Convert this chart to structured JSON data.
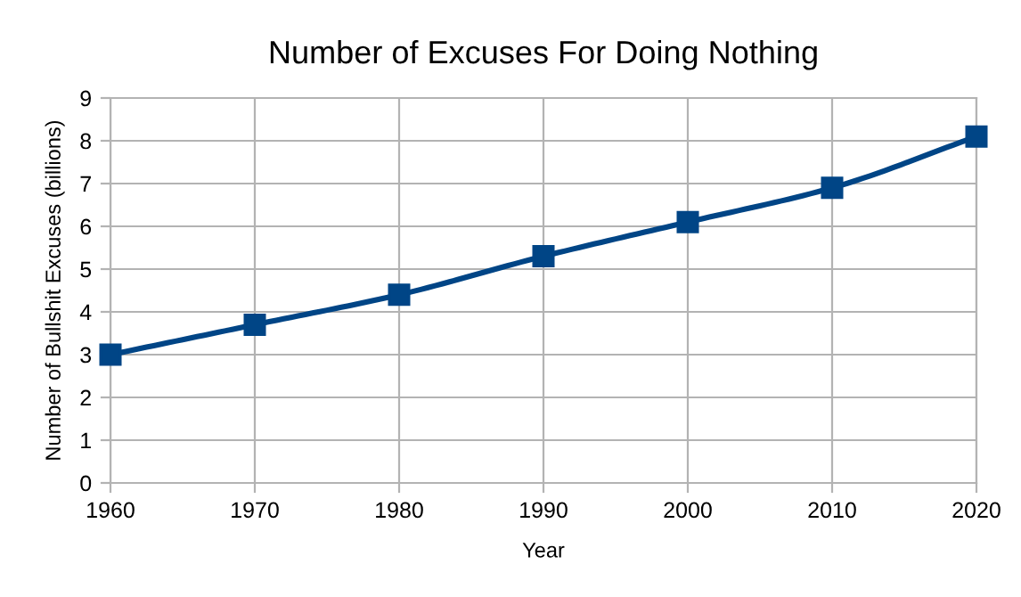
{
  "chart_data": {
    "type": "line",
    "title": "Number of Excuses For Doing Nothing",
    "xlabel": "Year",
    "ylabel": "Number of Bullshit Excuses (billions)",
    "x": [
      1960,
      1970,
      1980,
      1990,
      2000,
      2010,
      2020
    ],
    "series": [
      {
        "color": "#004586",
        "values": [
          3.0,
          3.7,
          4.4,
          5.3,
          6.1,
          6.9,
          8.1
        ]
      }
    ],
    "xlim": [
      1960,
      2020
    ],
    "xticks": [
      1960,
      1970,
      1980,
      1990,
      2000,
      2010,
      2020
    ],
    "ylim": [
      0,
      9
    ],
    "yticks": [
      0,
      1,
      2,
      3,
      4,
      5,
      6,
      7,
      8,
      9
    ],
    "grid": true,
    "legend": false,
    "marker": "square",
    "line_style": "solid"
  }
}
